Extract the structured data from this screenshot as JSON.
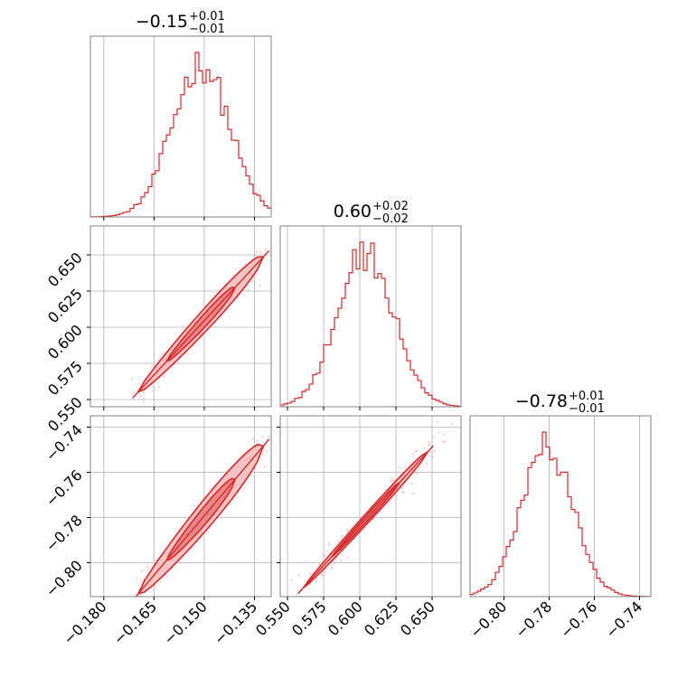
{
  "colors": {
    "hist": "#d62728",
    "contour": "#d62728",
    "fill_inner": "#e8878a",
    "fill_outer": "#f5c4c4",
    "scatter": "#f3b3b5",
    "grid": "#b0b0b0",
    "frame": "#808080"
  },
  "chart_data": [
    {
      "type": "histogram",
      "panel": "x",
      "title": {
        "main": "−0.15",
        "sup": "+0.01",
        "sub": "−0.01"
      },
      "grid": true,
      "xlim": [
        -0.184,
        -0.13
      ],
      "xticks": [
        -0.18,
        -0.165,
        -0.15,
        -0.135
      ],
      "xtick_labels": [],
      "bins": 50,
      "mean": -0.151,
      "sd": 0.0085,
      "peak_counts": 1
    },
    {
      "type": "scatter",
      "panel": "x-y",
      "grid": true,
      "xlim": [
        -0.184,
        -0.13
      ],
      "ylim": [
        0.545,
        0.67
      ],
      "xticks": [
        -0.18,
        -0.165,
        -0.15,
        -0.135
      ],
      "yticks": [
        0.55,
        0.575,
        0.6,
        0.625,
        0.65
      ],
      "ytick_labels": [
        "0.550",
        "0.575",
        "0.600",
        "0.625",
        "0.650"
      ],
      "relation": {
        "slope": 2.5,
        "x0": -0.151,
        "y0": 0.602
      },
      "contour_levels": [
        "39%",
        "86%"
      ]
    },
    {
      "type": "histogram",
      "panel": "y",
      "title": {
        "main": "0.60",
        "sup": "+0.02",
        "sub": "−0.02"
      },
      "grid": true,
      "xlim": [
        0.545,
        0.67
      ],
      "xticks": [
        0.55,
        0.575,
        0.6,
        0.625,
        0.65
      ],
      "xtick_labels": [],
      "bins": 50,
      "mean": 0.604,
      "sd": 0.0195
    },
    {
      "type": "scatter",
      "panel": "x-z",
      "grid": true,
      "xlim": [
        -0.184,
        -0.13
      ],
      "ylim": [
        -0.815,
        -0.735
      ],
      "xticks": [
        -0.18,
        -0.165,
        -0.15,
        -0.135
      ],
      "xtick_labels": [
        "−0.180",
        "−0.165",
        "−0.150",
        "−0.135"
      ],
      "yticks": [
        -0.8,
        -0.78,
        -0.76,
        -0.74
      ],
      "ytick_labels": [
        "−0.80",
        "−0.78",
        "−0.76",
        "−0.74"
      ],
      "relation": {
        "slope": 1.75,
        "x0": -0.151,
        "y0": -0.781
      }
    },
    {
      "type": "scatter",
      "panel": "y-z",
      "grid": true,
      "xlim": [
        0.545,
        0.67
      ],
      "ylim": [
        -0.815,
        -0.735
      ],
      "xticks": [
        0.55,
        0.575,
        0.6,
        0.625,
        0.65
      ],
      "xtick_labels": [
        "0.550",
        "0.575",
        "0.600",
        "0.625",
        "0.650"
      ],
      "yticks": [
        -0.8,
        -0.78,
        -0.76,
        -0.74
      ],
      "ytick_labels": [],
      "relation": {
        "slope": 0.7,
        "x0": 0.604,
        "y0": -0.781
      }
    },
    {
      "type": "histogram",
      "panel": "z",
      "title": {
        "main": "−0.78",
        "sup": "+0.01",
        "sub": "−0.01"
      },
      "grid": true,
      "xlim": [
        -0.815,
        -0.735
      ],
      "xticks": [
        -0.8,
        -0.78,
        -0.76,
        -0.74
      ],
      "xtick_labels": [
        "−0.80",
        "−0.78",
        "−0.76",
        "−0.74"
      ],
      "bins": 50,
      "mean": -0.781,
      "sd": 0.0115
    }
  ]
}
